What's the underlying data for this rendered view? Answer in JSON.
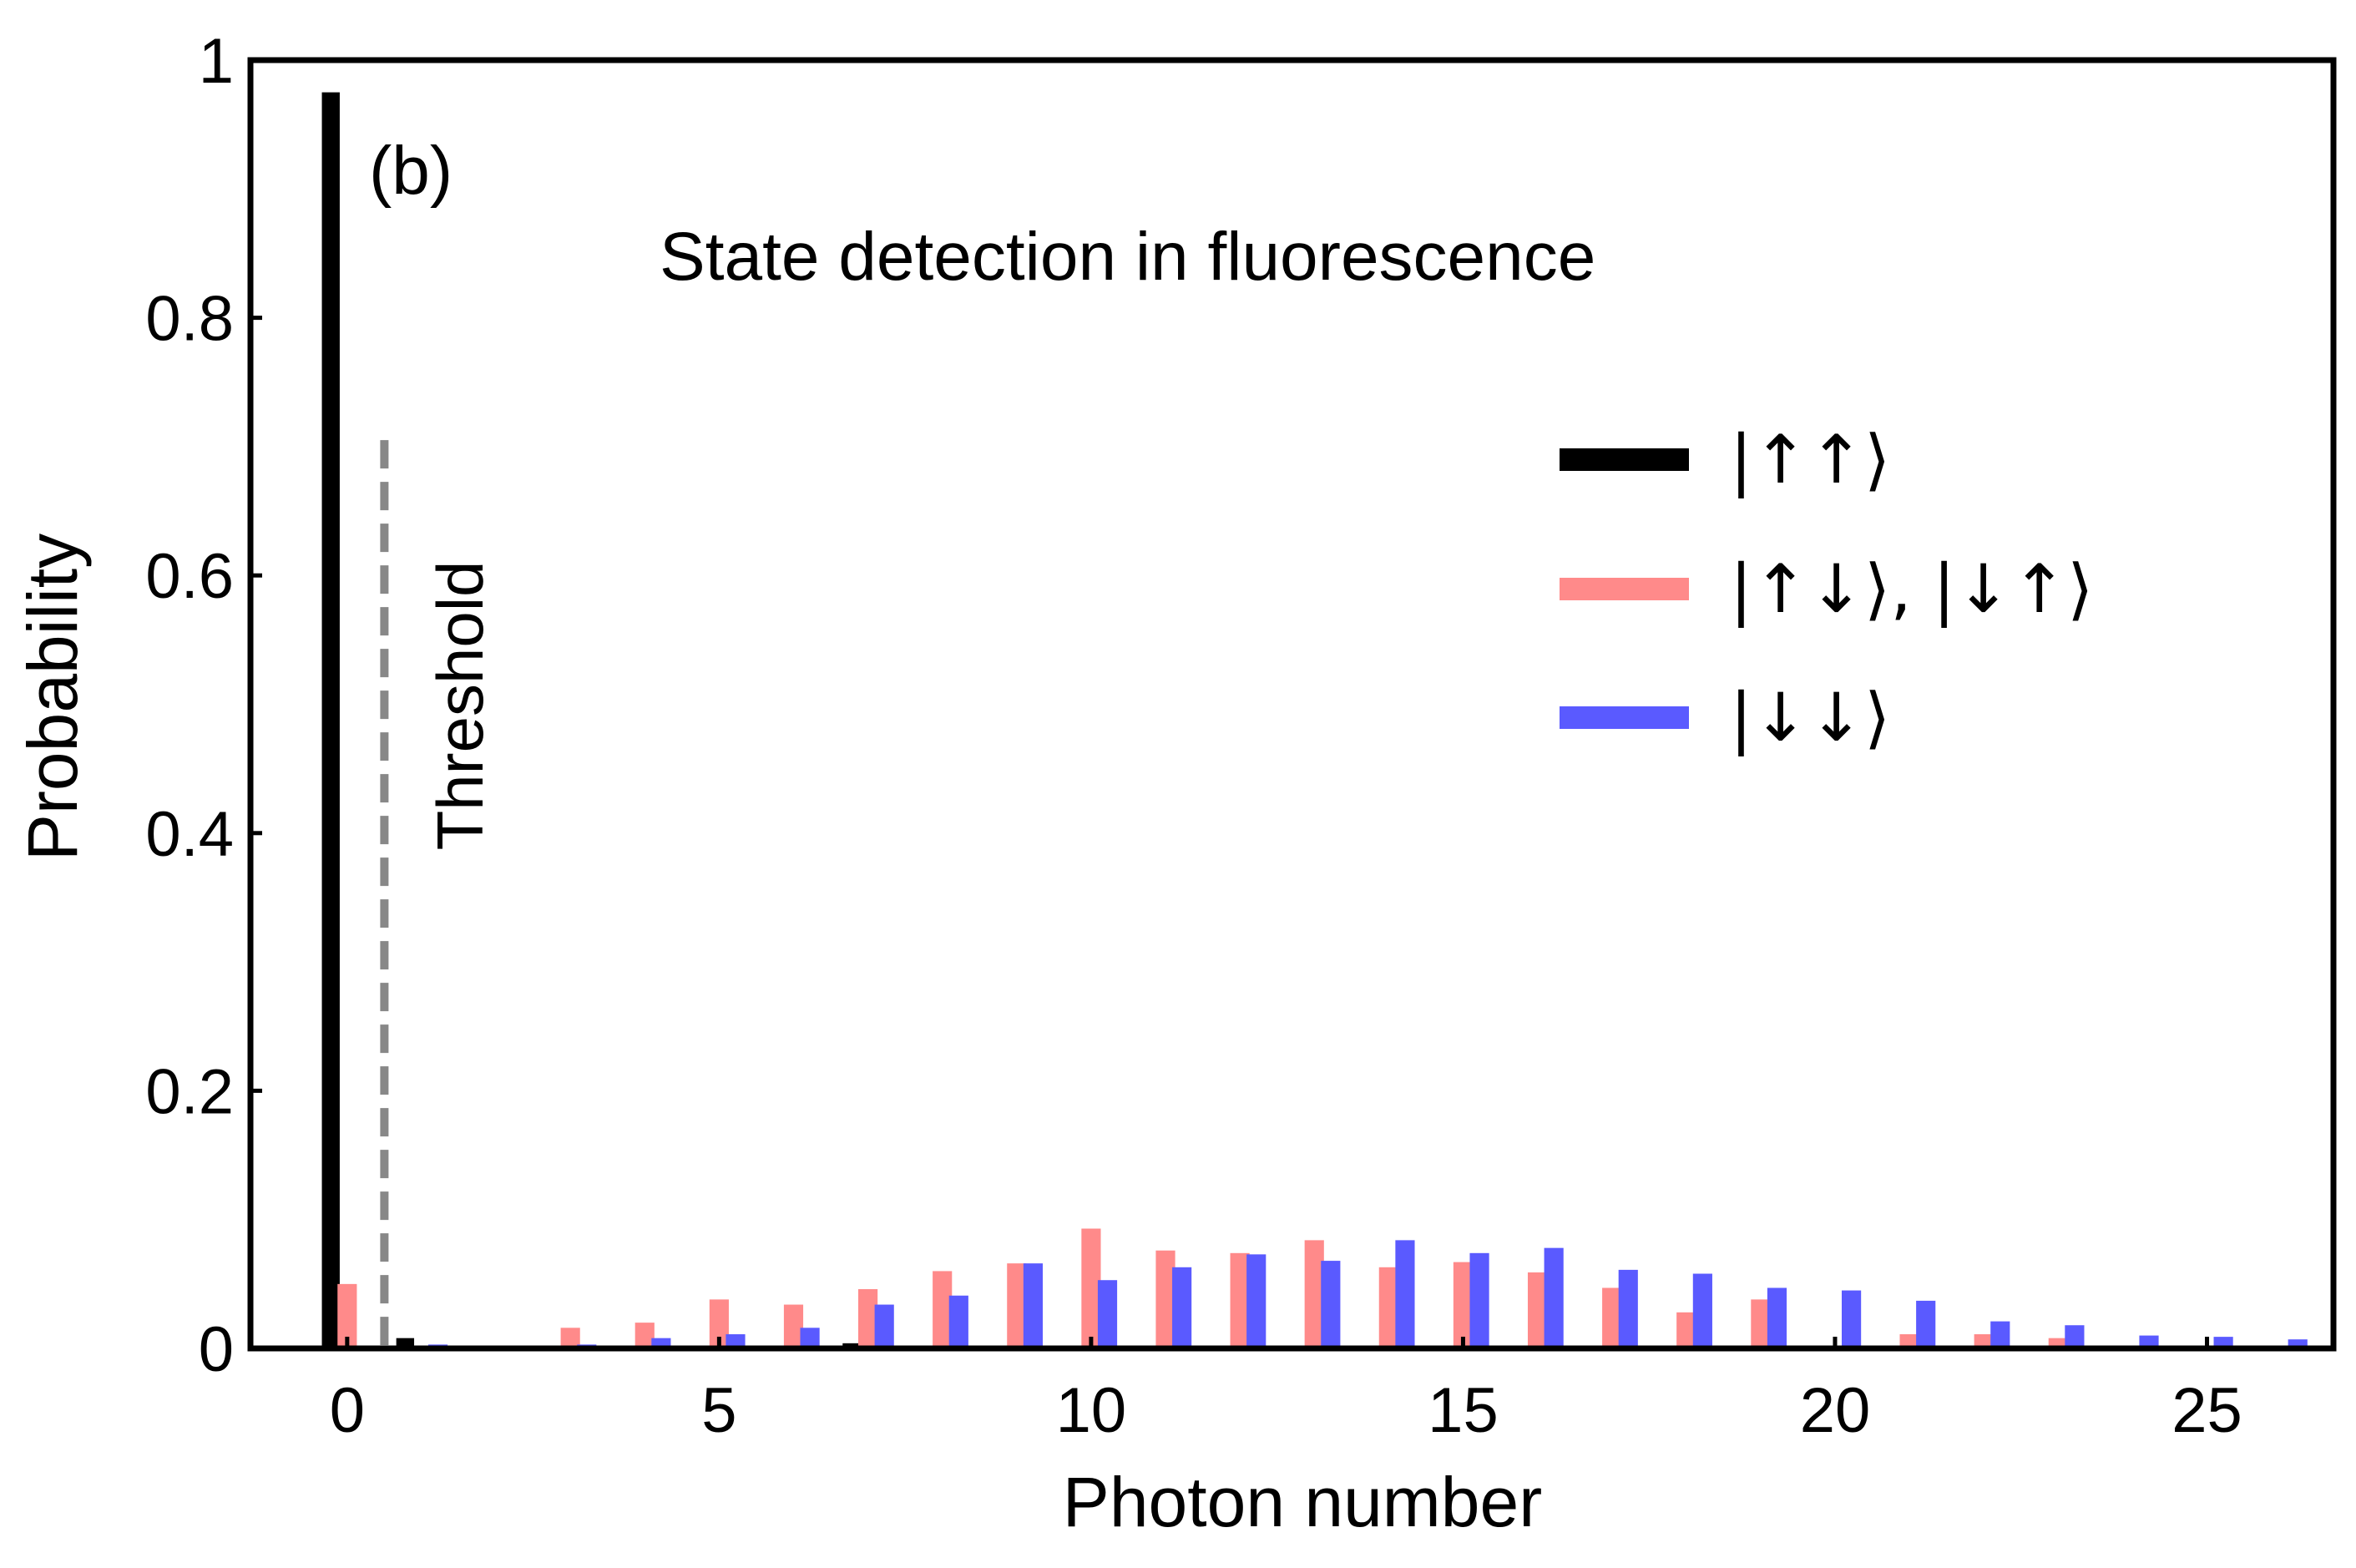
{
  "chart_data": {
    "type": "bar",
    "panel_label": "(b)",
    "title": "State detection in fluorescence",
    "xlabel": "Photon number",
    "ylabel": "Probability",
    "xlim": [
      -1.3,
      26.7
    ],
    "ylim": [
      0,
      1
    ],
    "xticks": [
      0,
      5,
      10,
      15,
      20,
      25
    ],
    "xtick_labels": [
      "0",
      "5",
      "10",
      "15",
      "20",
      "25"
    ],
    "yticks": [
      0,
      0.2,
      0.4,
      0.6,
      0.8,
      1
    ],
    "ytick_labels": [
      "0",
      "0.2",
      "0.4",
      "0.6",
      "0.8",
      "1"
    ],
    "legend_position": "upper-right",
    "threshold": {
      "label": "Threshold",
      "x": 0.5,
      "y_top": 0.705,
      "color": "#888888"
    },
    "categories": [
      0,
      1,
      2,
      3,
      4,
      5,
      6,
      7,
      8,
      9,
      10,
      11,
      12,
      13,
      14,
      15,
      16,
      17,
      18,
      19,
      20,
      21,
      22,
      23,
      24,
      25,
      26
    ],
    "series": [
      {
        "name": "|↑↑⟩",
        "color": "#000000",
        "offset": -0.22,
        "values": [
          0.975,
          0.008,
          0.001,
          0.001,
          0.001,
          0.001,
          0.001,
          0.004,
          0,
          0,
          0,
          0,
          0,
          0.001,
          0.002,
          0,
          0,
          0,
          0,
          0.001,
          0.002,
          0,
          0,
          0,
          0,
          0,
          0
        ]
      },
      {
        "name": "|↑↓⟩, |↓↑⟩",
        "color": "#ff8a8a",
        "offset": 0,
        "values": [
          0.05,
          0.002,
          0.002,
          0.016,
          0.02,
          0.038,
          0.034,
          0.046,
          0.06,
          0.066,
          0.093,
          0.076,
          0.074,
          0.084,
          0.063,
          0.067,
          0.059,
          0.047,
          0.028,
          0.038,
          0.002,
          0.011,
          0.011,
          0.008,
          0.001,
          0,
          0
        ]
      },
      {
        "name": "|↓↓⟩",
        "color": "#5a5aff",
        "offset": 0.22,
        "values": [
          0.001,
          0.003,
          0.001,
          0.003,
          0.008,
          0.011,
          0.016,
          0.034,
          0.041,
          0.066,
          0.053,
          0.063,
          0.073,
          0.068,
          0.084,
          0.074,
          0.078,
          0.061,
          0.058,
          0.047,
          0.045,
          0.037,
          0.021,
          0.018,
          0.01,
          0.009,
          0.007
        ]
      }
    ]
  }
}
